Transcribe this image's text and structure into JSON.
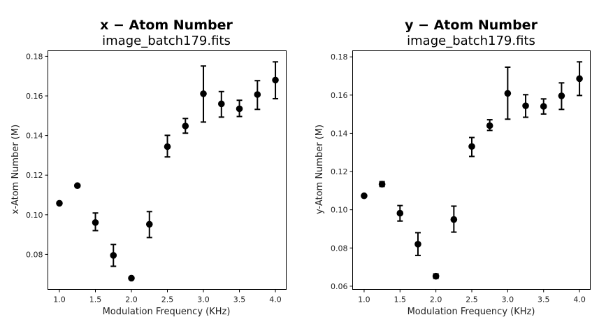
{
  "chart_data": [
    {
      "type": "scatter",
      "title": "x − Atom Number",
      "subtitle": "image_batch179.fits",
      "xlabel": "Modulation Frequency (KHz)",
      "ylabel": "x-Atom Number (M)",
      "xlim": [
        0.84,
        4.15
      ],
      "ylim": [
        0.0623,
        0.1828
      ],
      "xticks": [
        1.0,
        1.5,
        2.0,
        2.5,
        3.0,
        3.5,
        4.0
      ],
      "xtick_labels": [
        "1.0",
        "1.5",
        "2.0",
        "2.5",
        "3.0",
        "3.5",
        "4.0"
      ],
      "yticks": [
        0.08,
        0.1,
        0.12,
        0.14,
        0.16,
        0.18
      ],
      "ytick_labels": [
        "0.08",
        "0.10",
        "0.12",
        "0.14",
        "0.16",
        "0.18"
      ],
      "grid": false,
      "marker_color": "#000000",
      "x": [
        1.0,
        1.25,
        1.5,
        1.75,
        2.0,
        2.25,
        2.5,
        2.75,
        3.0,
        3.25,
        3.5,
        3.75,
        4.0
      ],
      "y": [
        0.1058,
        0.1147,
        0.0961,
        0.0795,
        0.068,
        0.0952,
        0.1344,
        0.1448,
        0.1611,
        0.156,
        0.1535,
        0.1607,
        0.168
      ],
      "y_err_low": [
        0.1058,
        0.1147,
        0.092,
        0.074,
        0.068,
        0.0885,
        0.1292,
        0.1412,
        0.1468,
        0.1493,
        0.1496,
        0.1532,
        0.1586
      ],
      "y_err_high": [
        0.1058,
        0.1147,
        0.1009,
        0.085,
        0.068,
        0.1016,
        0.1401,
        0.1486,
        0.1751,
        0.1622,
        0.1578,
        0.1677,
        0.1772
      ]
    },
    {
      "type": "scatter",
      "title": "y − Atom Number",
      "subtitle": "image_batch179.fits",
      "xlabel": "Modulation Frequency (KHz)",
      "ylabel": "y-Atom Number (M)",
      "xlim": [
        0.84,
        4.15
      ],
      "ylim": [
        0.0583,
        0.1832
      ],
      "xticks": [
        1.0,
        1.5,
        2.0,
        2.5,
        3.0,
        3.5,
        4.0
      ],
      "xtick_labels": [
        "1.0",
        "1.5",
        "2.0",
        "2.5",
        "3.0",
        "3.5",
        "4.0"
      ],
      "yticks": [
        0.06,
        0.08,
        0.1,
        0.12,
        0.14,
        0.16,
        0.18
      ],
      "ytick_labels": [
        "0.06",
        "0.08",
        "0.10",
        "0.12",
        "0.14",
        "0.16",
        "0.18"
      ],
      "grid": false,
      "marker_color": "#000000",
      "x": [
        1.0,
        1.25,
        1.5,
        1.75,
        2.0,
        2.25,
        2.5,
        2.75,
        3.0,
        3.25,
        3.5,
        3.75,
        4.0
      ],
      "y": [
        0.1073,
        0.1134,
        0.0982,
        0.082,
        0.0652,
        0.0949,
        0.1331,
        0.144,
        0.1609,
        0.1544,
        0.1541,
        0.1596,
        0.1686
      ],
      "y_err_low": [
        0.1073,
        0.1122,
        0.0941,
        0.0761,
        0.0641,
        0.0883,
        0.1279,
        0.1415,
        0.1474,
        0.1484,
        0.1501,
        0.1525,
        0.1598
      ],
      "y_err_high": [
        0.1073,
        0.1147,
        0.1022,
        0.088,
        0.0664,
        0.1019,
        0.1378,
        0.1471,
        0.1746,
        0.1602,
        0.158,
        0.1664,
        0.1774
      ]
    }
  ]
}
